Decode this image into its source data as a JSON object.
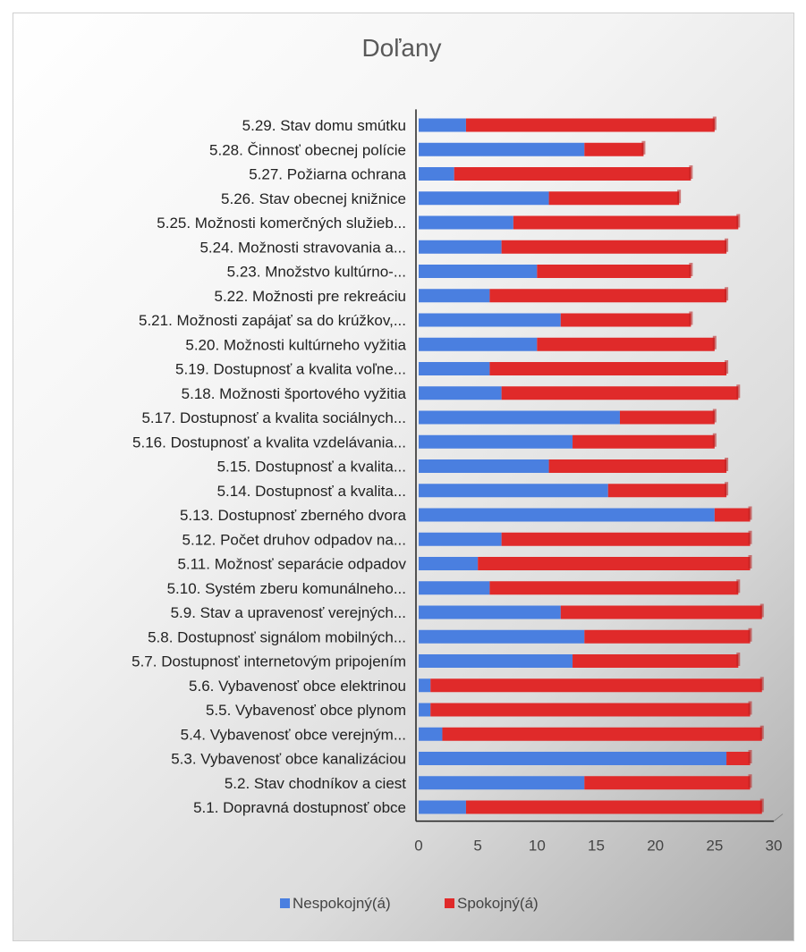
{
  "chart_data": {
    "type": "bar",
    "orientation": "horizontal",
    "stacked": true,
    "title": "Doľany",
    "xlabel": "",
    "ylabel": "",
    "xlim": [
      0,
      30
    ],
    "xticks": [
      0,
      5,
      10,
      15,
      20,
      25,
      30
    ],
    "grid": false,
    "legend_position": "bottom",
    "categories": [
      "5.29. Stav domu smútku",
      "5.28. Činnosť obecnej polície",
      "5.27. Požiarna ochrana",
      "5.26. Stav obecnej knižnice",
      "5.25. Možnosti komerčných služieb...",
      "5.24. Možnosti stravovania a...",
      "5.23. Množstvo kultúrno-...",
      "5.22. Možnosti pre rekreáciu",
      "5.21. Možnosti zapájať sa do krúžkov,...",
      "5.20. Možnosti kultúrneho vyžitia",
      "5.19. Dostupnosť a kvalita voľne...",
      "5.18. Možnosti športového vyžitia",
      "5.17. Dostupnosť a kvalita sociálnych...",
      "5.16. Dostupnosť a kvalita vzdelávania...",
      "5.15. Dostupnosť a kvalita...",
      "5.14. Dostupnosť a kvalita...",
      "5.13. Dostupnosť zberného dvora",
      "5.12. Počet druhov odpadov na...",
      "5.11. Možnosť separácie odpadov",
      "5.10. Systém zberu komunálneho...",
      "5.9. Stav a upravenosť verejných...",
      "5.8. Dostupnosť signálom mobilných...",
      "5.7. Dostupnosť internetovým pripojením",
      "5.6. Vybavenosť obce elektrinou",
      "5.5. Vybavenosť obce plynom",
      "5.4. Vybavenosť obce verejným...",
      "5.3. Vybavenosť obce kanalizáciou",
      "5.2. Stav chodníkov a ciest",
      "5.1. Dopravná dostupnosť obce"
    ],
    "series": [
      {
        "name": "Nespokojný(á)",
        "color": "#4a7fe0",
        "values": [
          4,
          14,
          3,
          11,
          8,
          7,
          10,
          6,
          12,
          10,
          6,
          7,
          17,
          13,
          11,
          16,
          25,
          7,
          5,
          6,
          12,
          14,
          13,
          1,
          1,
          2,
          26,
          14,
          4
        ]
      },
      {
        "name": "Spokojný(á)",
        "color": "#e02a2a",
        "values": [
          21,
          5,
          20,
          11,
          19,
          19,
          13,
          20,
          11,
          15,
          20,
          20,
          8,
          12,
          15,
          10,
          3,
          21,
          23,
          21,
          17,
          14,
          14,
          28,
          27,
          27,
          2,
          14,
          25
        ]
      }
    ]
  }
}
